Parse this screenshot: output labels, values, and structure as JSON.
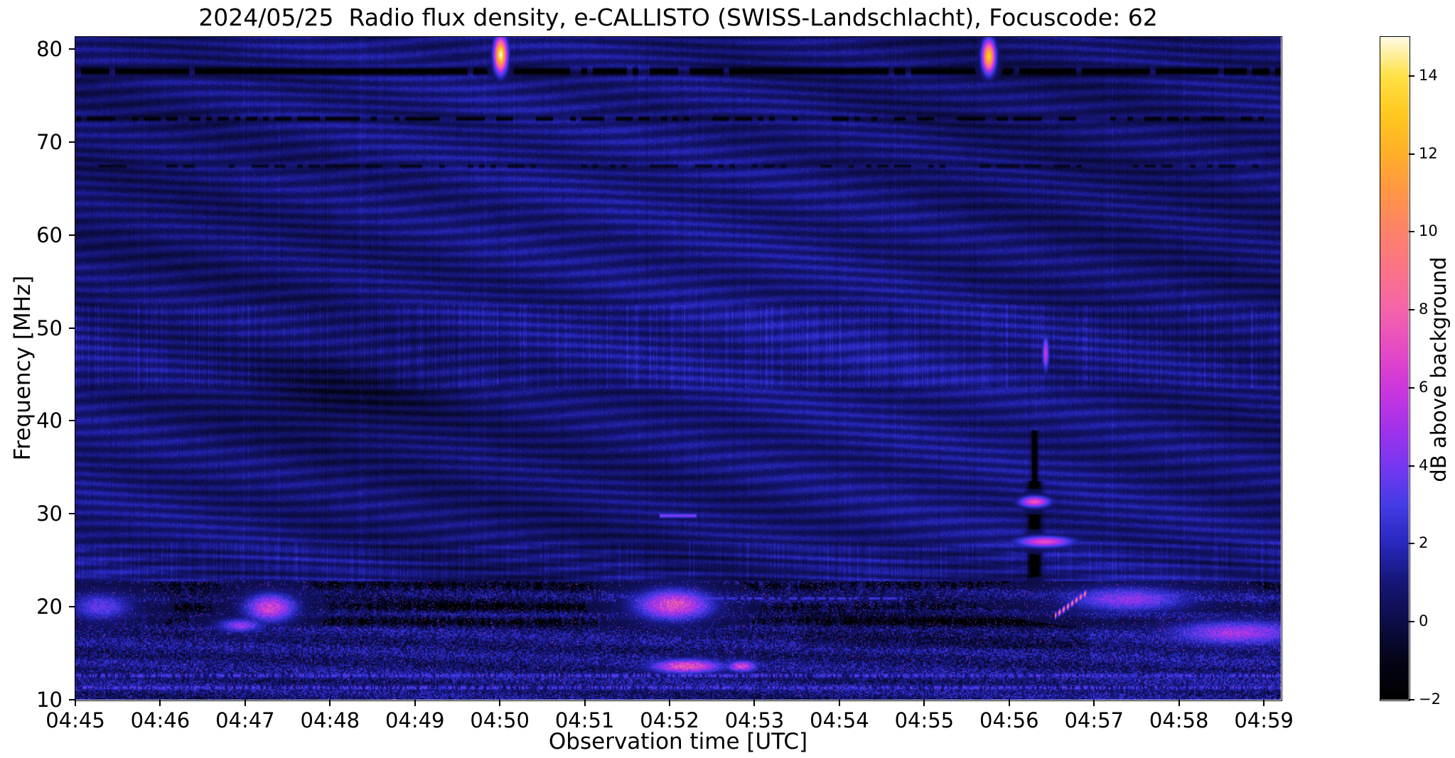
{
  "chart_data": {
    "type": "heatmap",
    "title": "2024/05/25  Radio flux density, e-CALLISTO (SWISS-Landschlacht), Focuscode: 62",
    "xlabel": "Observation time [UTC]",
    "ylabel": "Frequency [MHz]",
    "x_ticks": [
      "04:45",
      "04:46",
      "04:47",
      "04:48",
      "04:49",
      "04:50",
      "04:51",
      "04:52",
      "04:53",
      "04:54",
      "04:55",
      "04:56",
      "04:57",
      "04:58",
      "04:59"
    ],
    "x_tick_minutes": [
      0,
      1,
      2,
      3,
      4,
      5,
      6,
      7,
      8,
      9,
      10,
      11,
      12,
      13,
      14
    ],
    "x_range_minutes": [
      0,
      14.2
    ],
    "y_ticks": [
      "80",
      "70",
      "60",
      "50",
      "40",
      "30",
      "20",
      "10"
    ],
    "y_tick_values": [
      80,
      70,
      60,
      50,
      40,
      30,
      20,
      10
    ],
    "y_range_mhz": [
      10,
      81.3
    ],
    "grid": false,
    "legend": "none",
    "background_db": 0.85,
    "colorbar": {
      "label": "dB above background",
      "ticks": [
        "14",
        "12",
        "10",
        "8",
        "6",
        "4",
        "2",
        "0",
        "−2"
      ],
      "tick_values": [
        14,
        12,
        10,
        8,
        6,
        4,
        2,
        0,
        -2
      ],
      "range": [
        -2,
        15
      ],
      "stops": [
        [
          -2.0,
          "#000000"
        ],
        [
          -1.0,
          "#040418"
        ],
        [
          0.0,
          "#0d0d48"
        ],
        [
          1.0,
          "#161678"
        ],
        [
          2.0,
          "#2828be"
        ],
        [
          3.0,
          "#463ce6"
        ],
        [
          4.0,
          "#7837f0"
        ],
        [
          5.0,
          "#a532eb"
        ],
        [
          6.0,
          "#cd37dc"
        ],
        [
          7.0,
          "#e64bc3"
        ],
        [
          8.0,
          "#f564aa"
        ],
        [
          9.0,
          "#fa7387"
        ],
        [
          10.0,
          "#fd8269"
        ],
        [
          11.0,
          "#ff9646"
        ],
        [
          12.0,
          "#ffaf28"
        ],
        [
          13.0,
          "#ffc81e"
        ],
        [
          14.0,
          "#ffe146"
        ],
        [
          15.0,
          "#fffae6"
        ]
      ]
    },
    "noise_band": {
      "f_max": 22.8,
      "dark_rows": [
        22.3,
        20.0,
        18.4
      ],
      "bright_rows": [
        11.3,
        12.6
      ]
    },
    "features": [
      {
        "type": "dark_hline",
        "f": 77.6,
        "width_mhz": 0.5,
        "t0": 0,
        "t1": 14.2,
        "db": -2.0,
        "gap_prob": 0.1
      },
      {
        "type": "dark_hline",
        "f": 72.5,
        "width_mhz": 0.3,
        "t0": 0,
        "t1": 14.2,
        "db": -1.6,
        "gap_prob": 0.45
      },
      {
        "type": "dark_hline",
        "f": 67.4,
        "width_mhz": 0.25,
        "t0": 0,
        "t1": 14.2,
        "db": -0.9,
        "gap_prob": 0.6
      },
      {
        "type": "dim_patch",
        "t": 3.1,
        "f": 43.0,
        "dt": 0.85,
        "df": 3.0,
        "db": -0.9
      },
      {
        "type": "dark_vline",
        "t": 11.3,
        "f0": 22.5,
        "f1": 39.0,
        "width_min": 0.05,
        "db": -2.0
      },
      {
        "type": "burst",
        "t": 5.01,
        "f": 79.4,
        "dt": 0.05,
        "df": 1.25,
        "db": 15.0
      },
      {
        "type": "burst",
        "t": 10.76,
        "f": 79.2,
        "dt": 0.05,
        "df": 1.15,
        "db": 13.5
      },
      {
        "type": "burst",
        "t": 11.3,
        "f": 31.3,
        "dt": 0.12,
        "df": 0.4,
        "db": 7.5
      },
      {
        "type": "burst",
        "t": 11.42,
        "f": 27.0,
        "dt": 0.22,
        "df": 0.4,
        "db": 7.0
      },
      {
        "type": "burst",
        "t": 11.43,
        "f": 47.3,
        "dt": 0.025,
        "df": 1.2,
        "db": 6.0
      },
      {
        "type": "bright_hline",
        "f": 29.8,
        "t0": 6.88,
        "t1": 7.32,
        "width_mhz": 0.35,
        "db": 4.2,
        "dashed": false
      },
      {
        "type": "bright_hline",
        "f": 20.9,
        "t0": 7.3,
        "t1": 9.8,
        "width_mhz": 0.22,
        "db": 2.9,
        "dashed": true
      },
      {
        "type": "drift_burst",
        "t0": 11.58,
        "t1": 11.88,
        "f_start": 19.3,
        "f_end": 21.3,
        "width_mhz": 0.45,
        "db": 11.0
      },
      {
        "type": "burst",
        "t": 2.3,
        "f": 19.9,
        "dt": 0.2,
        "df": 1.0,
        "db": 6.5
      },
      {
        "type": "burst",
        "t": 1.95,
        "f": 18.0,
        "dt": 0.18,
        "df": 0.5,
        "db": 4.5
      },
      {
        "type": "burst",
        "t": 0.3,
        "f": 20.0,
        "dt": 0.25,
        "df": 1.0,
        "db": 3.5
      },
      {
        "type": "burst",
        "t": 7.05,
        "f": 20.2,
        "dt": 0.3,
        "df": 1.1,
        "db": 7.0
      },
      {
        "type": "burst",
        "t": 7.2,
        "f": 13.6,
        "dt": 0.28,
        "df": 0.5,
        "db": 7.5
      },
      {
        "type": "burst",
        "t": 7.85,
        "f": 13.6,
        "dt": 0.12,
        "df": 0.4,
        "db": 6.5
      },
      {
        "type": "burst",
        "t": 12.4,
        "f": 20.8,
        "dt": 0.5,
        "df": 0.9,
        "db": 4.5
      },
      {
        "type": "burst",
        "t": 13.7,
        "f": 17.2,
        "dt": 0.55,
        "df": 0.9,
        "db": 5.0
      }
    ]
  }
}
